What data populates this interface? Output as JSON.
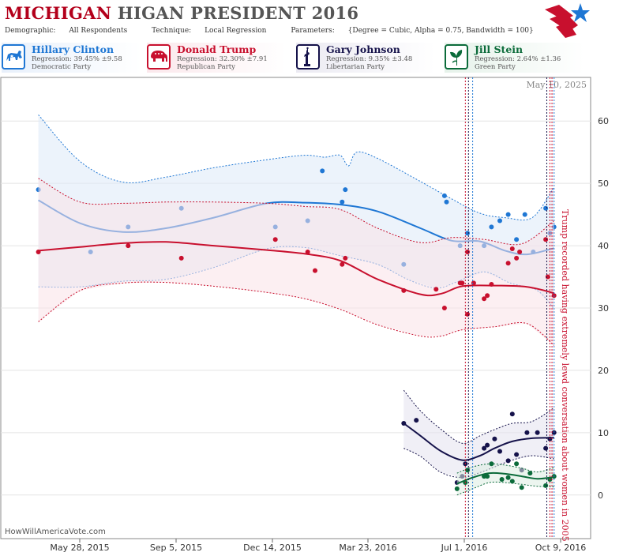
{
  "header": {
    "title_part1": "MICHIGAN",
    "title_part2": "HIGAN PRESIDENT 2016",
    "demographic_label": "Demographic:",
    "demographic_value": "All Respondents",
    "technique_label": "Technique:",
    "technique_value": "Local Regression",
    "parameters_label": "Parameters:",
    "parameters_value": "{Degree = Cubic, Alpha = 0.75, Bandwidth = 100}"
  },
  "candidates": [
    {
      "name": "Hillary Clinton",
      "regression": "Regression: 39.45% ±9.58",
      "party": "Democratic Party",
      "color": "#1f77d4",
      "bg": "#e8f0fb",
      "icon": "donkey-icon"
    },
    {
      "name": "Donald Trump",
      "regression": "Regression: 32.30% ±7.91",
      "party": "Republican Party",
      "color": "#c8102e",
      "bg": "#fbe8ec",
      "icon": "elephant-icon"
    },
    {
      "name": "Gary Johnson",
      "regression": "Regression: 9.35% ±3.48",
      "party": "Libertarian Party",
      "color": "#15124a",
      "bg": "#ebeaf2",
      "icon": "statue-of-liberty-icon"
    },
    {
      "name": "Jill Stein",
      "regression": "Regression: 2.64% ±1.36",
      "party": "Green Party",
      "color": "#0b6b3a",
      "bg": "#e6f2ea",
      "icon": "leaf-icon"
    }
  ],
  "chart_data": {
    "type": "scatter",
    "date_label": "May 10, 2025",
    "x_ticks": [
      "May 28, 2015",
      "Sep 5, 2015",
      "Dec 14, 2015",
      "Mar 23, 2016",
      "Jul 1, 2016",
      "Oct 9, 2016"
    ],
    "y_ticks": [
      0,
      10,
      20,
      30,
      40,
      50,
      60
    ],
    "ylim": [
      -7,
      67
    ],
    "xlim": [
      "2015-04-30",
      "2016-11-15"
    ],
    "annotation": "Trump recorded having extremely lewd conversation about women in 2005",
    "event_lines": [
      {
        "date": "2016-07-18",
        "color": "#c8102e"
      },
      {
        "date": "2016-07-21",
        "color": "#15124a"
      },
      {
        "date": "2016-07-25",
        "color": "#1f77d4"
      },
      {
        "date": "2016-10-04",
        "color": "#15124a"
      },
      {
        "date": "2016-10-07",
        "color": "#c8102e"
      },
      {
        "date": "2016-10-09",
        "color": "#c8102e"
      },
      {
        "date": "2016-10-11",
        "color": "#1f77d4"
      }
    ],
    "series": [
      {
        "name": "Hillary Clinton",
        "color": "#1f77d4",
        "band": "#dce9f8",
        "points": [
          [
            "2015-06-05",
            49
          ],
          [
            "2015-07-25",
            39
          ],
          [
            "2015-08-30",
            43
          ],
          [
            "2015-10-20",
            46
          ],
          [
            "2016-01-18",
            43
          ],
          [
            "2016-02-18",
            44
          ],
          [
            "2016-03-03",
            52
          ],
          [
            "2016-03-22",
            47
          ],
          [
            "2016-03-25",
            49
          ],
          [
            "2016-05-20",
            37
          ],
          [
            "2016-06-28",
            48
          ],
          [
            "2016-06-30",
            47
          ],
          [
            "2016-07-13",
            40
          ],
          [
            "2016-07-20",
            42
          ],
          [
            "2016-07-26",
            34
          ],
          [
            "2016-08-05",
            40
          ],
          [
            "2016-08-12",
            43
          ],
          [
            "2016-08-20",
            44
          ],
          [
            "2016-08-28",
            45
          ],
          [
            "2016-09-05",
            41
          ],
          [
            "2016-09-08",
            39
          ],
          [
            "2016-09-13",
            45
          ],
          [
            "2016-09-21",
            39
          ],
          [
            "2016-10-03",
            46
          ],
          [
            "2016-10-07",
            42
          ],
          [
            "2016-10-11",
            43
          ]
        ],
        "line": [
          [
            "2015-06-05",
            47.3
          ],
          [
            "2015-07-15",
            43.6
          ],
          [
            "2015-08-25",
            42.2
          ],
          [
            "2015-10-05",
            42.8
          ],
          [
            "2015-11-20",
            44.5
          ],
          [
            "2016-01-10",
            46.8
          ],
          [
            "2016-02-15",
            46.9
          ],
          [
            "2016-03-20",
            46.6
          ],
          [
            "2016-04-25",
            45.5
          ],
          [
            "2016-06-05",
            42.8
          ],
          [
            "2016-07-05",
            40.8
          ],
          [
            "2016-08-01",
            40.7
          ],
          [
            "2016-08-25",
            39.2
          ],
          [
            "2016-09-15",
            38.6
          ],
          [
            "2016-10-11",
            39.6
          ]
        ],
        "upper": [
          [
            "2015-06-05",
            61
          ],
          [
            "2015-07-15",
            53.5
          ],
          [
            "2015-08-25",
            50.2
          ],
          [
            "2015-10-05",
            51
          ],
          [
            "2015-11-20",
            52.5
          ],
          [
            "2016-01-10",
            53.8
          ],
          [
            "2016-02-15",
            54.5
          ],
          [
            "2016-03-05",
            54.2
          ],
          [
            "2016-03-20",
            54.5
          ],
          [
            "2016-03-28",
            52.8
          ],
          [
            "2016-04-05",
            55
          ],
          [
            "2016-04-25",
            54
          ],
          [
            "2016-06-05",
            50.3
          ],
          [
            "2016-07-05",
            47.5
          ],
          [
            "2016-08-01",
            45.2
          ],
          [
            "2016-08-25",
            44.5
          ],
          [
            "2016-09-20",
            44.5
          ],
          [
            "2016-10-11",
            49.4
          ]
        ],
        "lower": [
          [
            "2015-06-05",
            33.4
          ],
          [
            "2015-07-15",
            33.4
          ],
          [
            "2015-08-25",
            34.3
          ],
          [
            "2015-10-05",
            34.6
          ],
          [
            "2015-11-20",
            36.5
          ],
          [
            "2016-01-10",
            39.5
          ],
          [
            "2016-02-15",
            39.7
          ],
          [
            "2016-03-20",
            38.4
          ],
          [
            "2016-04-25",
            37
          ],
          [
            "2016-05-25",
            34.5
          ],
          [
            "2016-06-20",
            33.2
          ],
          [
            "2016-07-10",
            34.2
          ],
          [
            "2016-08-05",
            35.8
          ],
          [
            "2016-08-30",
            34
          ],
          [
            "2016-09-25",
            32.8
          ],
          [
            "2016-10-11",
            29.8
          ]
        ]
      },
      {
        "name": "Donald Trump",
        "color": "#c8102e",
        "band": "#f9e2e7",
        "points": [
          [
            "2015-06-05",
            39
          ],
          [
            "2015-08-30",
            40
          ],
          [
            "2015-10-20",
            38
          ],
          [
            "2016-01-18",
            41
          ],
          [
            "2016-02-18",
            39
          ],
          [
            "2016-02-25",
            36
          ],
          [
            "2016-03-22",
            37
          ],
          [
            "2016-03-25",
            38
          ],
          [
            "2016-05-20",
            32.8
          ],
          [
            "2016-06-20",
            33
          ],
          [
            "2016-06-28",
            30
          ],
          [
            "2016-07-13",
            34
          ],
          [
            "2016-07-15",
            34
          ],
          [
            "2016-07-20",
            39
          ],
          [
            "2016-07-20",
            29
          ],
          [
            "2016-07-26",
            34
          ],
          [
            "2016-08-05",
            31.5
          ],
          [
            "2016-08-08",
            32
          ],
          [
            "2016-08-12",
            33.8
          ],
          [
            "2016-08-28",
            37.2
          ],
          [
            "2016-09-01",
            39.5
          ],
          [
            "2016-09-05",
            38
          ],
          [
            "2016-09-08",
            39
          ],
          [
            "2016-10-03",
            41
          ],
          [
            "2016-10-05",
            35
          ],
          [
            "2016-10-11",
            32
          ]
        ],
        "line": [
          [
            "2015-06-05",
            39.2
          ],
          [
            "2015-07-15",
            39.8
          ],
          [
            "2015-08-25",
            40.4
          ],
          [
            "2015-10-05",
            40.6
          ],
          [
            "2015-11-20",
            40
          ],
          [
            "2016-01-10",
            39.3
          ],
          [
            "2016-02-15",
            38.7
          ],
          [
            "2016-03-20",
            37.6
          ],
          [
            "2016-04-25",
            34.6
          ],
          [
            "2016-06-05",
            32.2
          ],
          [
            "2016-06-25",
            32.3
          ],
          [
            "2016-07-15",
            33.5
          ],
          [
            "2016-08-15",
            33.6
          ],
          [
            "2016-09-15",
            33.4
          ],
          [
            "2016-10-11",
            32.4
          ]
        ],
        "upper": [
          [
            "2015-06-05",
            50.8
          ],
          [
            "2015-07-15",
            47
          ],
          [
            "2015-08-25",
            46.8
          ],
          [
            "2015-10-05",
            47
          ],
          [
            "2015-11-20",
            47
          ],
          [
            "2016-01-10",
            46.8
          ],
          [
            "2016-02-15",
            46.3
          ],
          [
            "2016-03-20",
            45.8
          ],
          [
            "2016-04-25",
            42.8
          ],
          [
            "2016-06-05",
            40.5
          ],
          [
            "2016-07-05",
            41.3
          ],
          [
            "2016-08-05",
            41
          ],
          [
            "2016-09-10",
            40.3
          ],
          [
            "2016-10-11",
            44
          ]
        ],
        "lower": [
          [
            "2015-06-05",
            27.8
          ],
          [
            "2015-07-15",
            32.8
          ],
          [
            "2015-08-25",
            34
          ],
          [
            "2015-10-05",
            34.1
          ],
          [
            "2015-11-20",
            33.5
          ],
          [
            "2016-01-10",
            32.5
          ],
          [
            "2016-02-15",
            31.5
          ],
          [
            "2016-03-20",
            29.8
          ],
          [
            "2016-04-25",
            27.3
          ],
          [
            "2016-06-05",
            25.5
          ],
          [
            "2016-06-25",
            25.5
          ],
          [
            "2016-07-15",
            26.5
          ],
          [
            "2016-08-15",
            27
          ],
          [
            "2016-09-15",
            27.5
          ],
          [
            "2016-10-11",
            24
          ]
        ]
      },
      {
        "name": "Gary Johnson",
        "color": "#15124a",
        "band": "#e3e2ee",
        "points": [
          [
            "2016-05-20",
            11.5
          ],
          [
            "2016-06-01",
            12
          ],
          [
            "2016-07-10",
            2
          ],
          [
            "2016-07-15",
            3
          ],
          [
            "2016-07-18",
            5
          ],
          [
            "2016-08-05",
            7.5
          ],
          [
            "2016-08-08",
            8
          ],
          [
            "2016-08-15",
            9
          ],
          [
            "2016-08-20",
            7
          ],
          [
            "2016-08-28",
            5.5
          ],
          [
            "2016-09-01",
            13
          ],
          [
            "2016-09-05",
            6.5
          ],
          [
            "2016-09-10",
            4
          ],
          [
            "2016-09-15",
            10
          ],
          [
            "2016-09-25",
            10
          ],
          [
            "2016-10-03",
            7.5
          ],
          [
            "2016-10-07",
            9
          ],
          [
            "2016-10-11",
            10
          ]
        ],
        "line": [
          [
            "2016-05-20",
            11.5
          ],
          [
            "2016-06-05",
            9.5
          ],
          [
            "2016-06-25",
            7
          ],
          [
            "2016-07-15",
            5.6
          ],
          [
            "2016-08-01",
            6.3
          ],
          [
            "2016-08-15",
            7.5
          ],
          [
            "2016-09-01",
            8.6
          ],
          [
            "2016-09-20",
            9.1
          ],
          [
            "2016-10-11",
            9.2
          ]
        ],
        "upper": [
          [
            "2016-05-20",
            16.8
          ],
          [
            "2016-06-05",
            13.5
          ],
          [
            "2016-06-25",
            10.5
          ],
          [
            "2016-07-15",
            8.3
          ],
          [
            "2016-08-01",
            9.5
          ],
          [
            "2016-08-15",
            10.5
          ],
          [
            "2016-09-01",
            11.5
          ],
          [
            "2016-09-20",
            11.8
          ],
          [
            "2016-10-11",
            14
          ]
        ],
        "lower": [
          [
            "2016-05-20",
            7.5
          ],
          [
            "2016-06-05",
            6.2
          ],
          [
            "2016-06-25",
            3.6
          ],
          [
            "2016-07-15",
            2.8
          ],
          [
            "2016-08-01",
            3.6
          ],
          [
            "2016-08-15",
            4.5
          ],
          [
            "2016-09-01",
            5.6
          ],
          [
            "2016-09-20",
            6.3
          ],
          [
            "2016-10-11",
            5.8
          ]
        ]
      },
      {
        "name": "Jill Stein",
        "color": "#0b6b3a",
        "band": "#dcede2",
        "points": [
          [
            "2016-07-10",
            1
          ],
          [
            "2016-07-18",
            2
          ],
          [
            "2016-07-20",
            4
          ],
          [
            "2016-08-05",
            3
          ],
          [
            "2016-08-08",
            3
          ],
          [
            "2016-08-12",
            5
          ],
          [
            "2016-08-22",
            2.5
          ],
          [
            "2016-08-28",
            2.8
          ],
          [
            "2016-09-01",
            2.2
          ],
          [
            "2016-09-05",
            5
          ],
          [
            "2016-09-10",
            1.2
          ],
          [
            "2016-09-18",
            3.5
          ],
          [
            "2016-10-03",
            1.5
          ],
          [
            "2016-10-07",
            2.5
          ],
          [
            "2016-10-11",
            3
          ]
        ],
        "line": [
          [
            "2016-07-10",
            1.8
          ],
          [
            "2016-07-25",
            2.8
          ],
          [
            "2016-08-10",
            3.5
          ],
          [
            "2016-08-25",
            3.4
          ],
          [
            "2016-09-10",
            3
          ],
          [
            "2016-09-25",
            2.6
          ],
          [
            "2016-10-11",
            2.9
          ]
        ],
        "upper": [
          [
            "2016-07-10",
            3.5
          ],
          [
            "2016-07-25",
            4.5
          ],
          [
            "2016-08-10",
            5
          ],
          [
            "2016-08-25",
            4.8
          ],
          [
            "2016-09-10",
            4.3
          ],
          [
            "2016-09-25",
            3.7
          ],
          [
            "2016-10-11",
            4.4
          ]
        ],
        "lower": [
          [
            "2016-07-10",
            0
          ],
          [
            "2016-07-25",
            1
          ],
          [
            "2016-08-10",
            2
          ],
          [
            "2016-08-25",
            2
          ],
          [
            "2016-09-10",
            1.7
          ],
          [
            "2016-09-25",
            1.4
          ],
          [
            "2016-10-11",
            1.3
          ]
        ]
      }
    ]
  },
  "watermark": "HowWillAmericaVote.com"
}
